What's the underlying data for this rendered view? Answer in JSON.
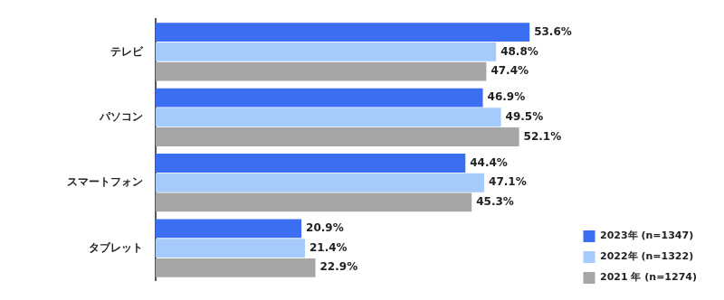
{
  "chart_data": {
    "type": "bar",
    "orientation": "horizontal",
    "categories": [
      "テレビ",
      "パソコン",
      "スマートフォン",
      "タブレット"
    ],
    "series": [
      {
        "name": "2023年 (n=1347)",
        "color": "#3b6ef0",
        "values": [
          53.6,
          46.9,
          44.4,
          20.9
        ],
        "value_labels": [
          "53.6%",
          "46.9%",
          "44.4%",
          "20.9%"
        ]
      },
      {
        "name": "2022年 (n=1322)",
        "color": "#a5cbfa",
        "values": [
          48.8,
          49.5,
          47.1,
          21.4
        ],
        "value_labels": [
          "48.8%",
          "49.5%",
          "47.1%",
          "21.4%"
        ]
      },
      {
        "name": "2021 年 (n=1274)",
        "color": "#a6a6a6",
        "values": [
          47.4,
          52.1,
          45.3,
          22.9
        ],
        "value_labels": [
          "47.4%",
          "52.1%",
          "45.3%",
          "22.9%"
        ]
      }
    ],
    "data_labels": true,
    "tick_labels": "y",
    "grid": false,
    "legend": "lower right"
  }
}
